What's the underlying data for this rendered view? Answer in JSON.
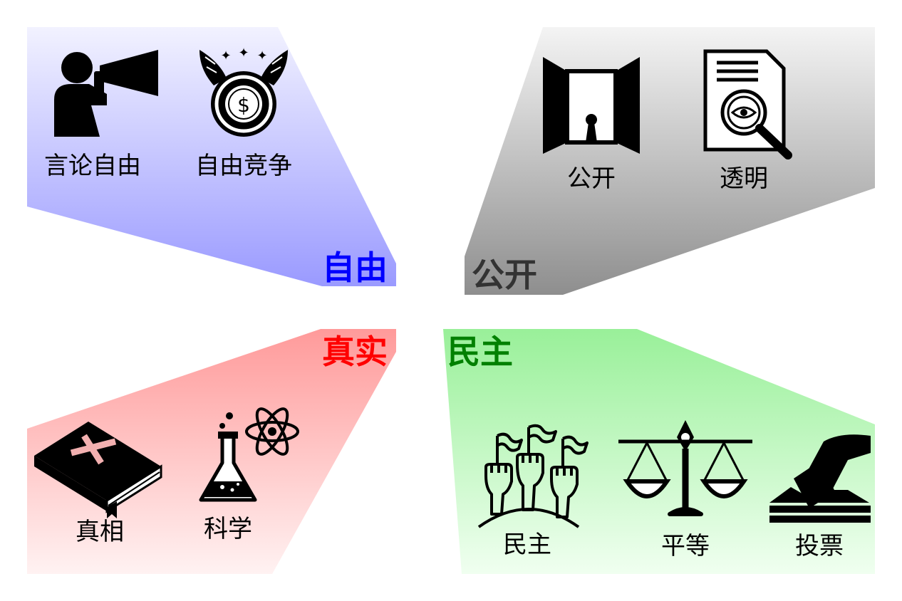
{
  "quadrants": {
    "freedom": {
      "title": "自由",
      "color": "#0000ff",
      "items": [
        "言论自由",
        "自由竞争"
      ],
      "icons": [
        "megaphone-speaker-icon",
        "winged-coin-icon"
      ]
    },
    "openness": {
      "title": "公开",
      "color": "#333333",
      "items": [
        "公开",
        "透明"
      ],
      "icons": [
        "open-door-keyhole-icon",
        "document-magnifier-icon"
      ]
    },
    "truth": {
      "title": "真实",
      "color": "#ff0000",
      "items": [
        "真相",
        "科学"
      ],
      "icons": [
        "bible-cross-icon",
        "flask-atom-icon"
      ]
    },
    "democracy": {
      "title": "民主",
      "color": "#008000",
      "items": [
        "民主",
        "平等",
        "投票"
      ],
      "icons": [
        "raised-fists-flags-icon",
        "balance-scale-icon",
        "ballot-box-icon"
      ]
    }
  }
}
